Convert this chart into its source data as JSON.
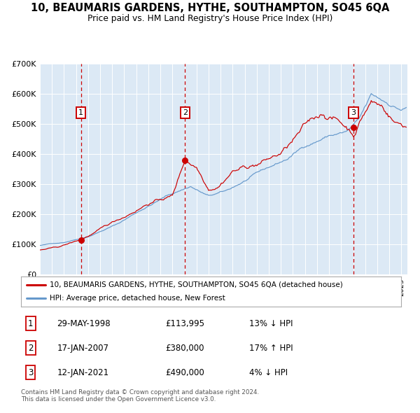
{
  "title": "10, BEAUMARIS GARDENS, HYTHE, SOUTHAMPTON, SO45 6QA",
  "subtitle": "Price paid vs. HM Land Registry's House Price Index (HPI)",
  "sale_year_nums": [
    1998.413,
    2007.046,
    2021.031
  ],
  "sale_prices": [
    113995,
    380000,
    490000
  ],
  "sale_labels": [
    "1",
    "2",
    "3"
  ],
  "legend_property": "10, BEAUMARIS GARDENS, HYTHE, SOUTHAMPTON, SO45 6QA (detached house)",
  "legend_hpi": "HPI: Average price, detached house, New Forest",
  "price_color": "#cc0000",
  "hpi_color": "#6699cc",
  "background_color": "#dce9f5",
  "ylim": [
    0,
    700000
  ],
  "yticks": [
    0,
    100000,
    200000,
    300000,
    400000,
    500000,
    600000,
    700000
  ],
  "ytick_labels": [
    "£0",
    "£100K",
    "£200K",
    "£300K",
    "£400K",
    "£500K",
    "£600K",
    "£700K"
  ],
  "footer": "Contains HM Land Registry data © Crown copyright and database right 2024.\nThis data is licensed under the Open Government Licence v3.0.",
  "xlim_start": 1995.0,
  "xlim_end": 2025.5,
  "row_data": [
    [
      "1",
      "29-MAY-1998",
      "£113,995",
      "13% ↓ HPI"
    ],
    [
      "2",
      "17-JAN-2007",
      "£380,000",
      "17% ↑ HPI"
    ],
    [
      "3",
      "12-JAN-2021",
      "£490,000",
      "4% ↓ HPI"
    ]
  ]
}
